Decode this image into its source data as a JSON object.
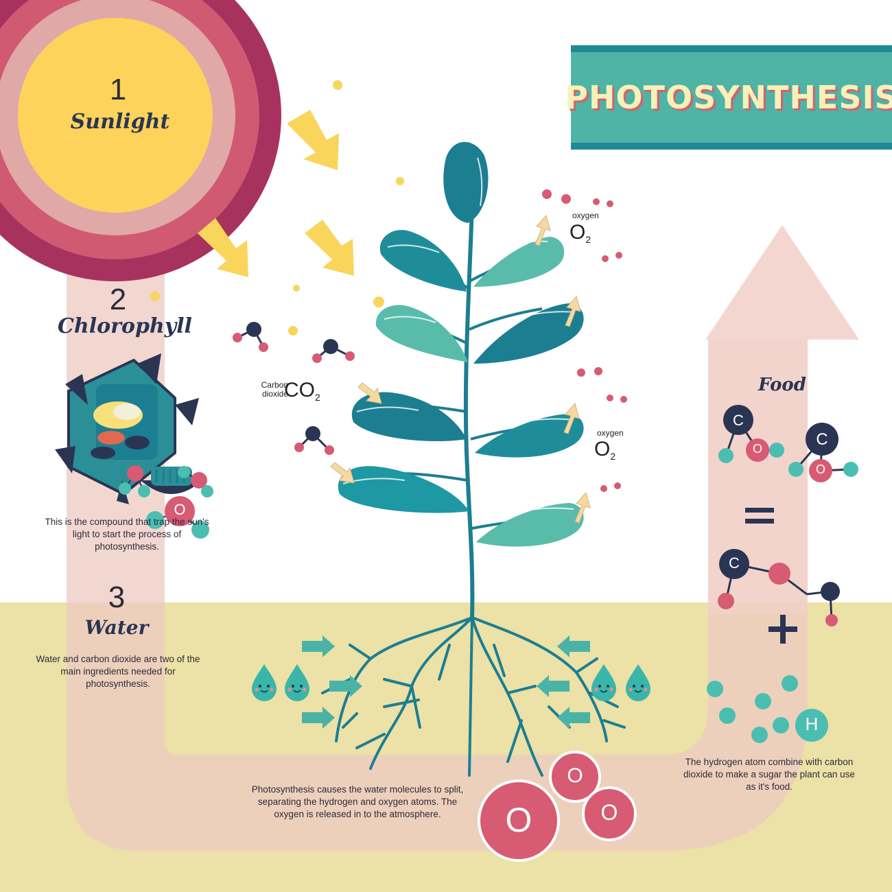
{
  "title": "PHOTOSYNTHESIS",
  "steps": [
    {
      "number": "1",
      "label": "Sunlight"
    },
    {
      "number": "2",
      "label": "Chlorophyll",
      "description": "This is the compound that trap the sun's light to start the process of photosynthesis."
    },
    {
      "number": "3",
      "label": "Water",
      "description": "Water and carbon dioxide are two of the main ingredients needed for photosynthesis."
    }
  ],
  "co2": {
    "name": "Carbon dioxide",
    "formula": "CO",
    "subscript": "2"
  },
  "o2_top": {
    "name": "oxygen",
    "formula": "O",
    "subscript": "2"
  },
  "o2_mid": {
    "name": "oxygen",
    "formula": "O",
    "subscript": "2"
  },
  "food": {
    "label": "Food",
    "equals": "=",
    "plus": "+"
  },
  "split_text": "Photosynthesis causes the water molecules to split, separating the hydrogen and oxygen atoms. The oxygen is released in to the atmosphere.",
  "hydrogen_text": "The hydrogen atom combine with carbon dioxide to make a sugar the plant can use as it's food.",
  "atoms": {
    "O": "O",
    "H": "H",
    "C": "C"
  },
  "colors": {
    "sun_core": "#fdd35c",
    "sun_ring_outer": "#a8325e",
    "sun_ring_mid": "#d05a72",
    "sun_ring_inner": "#e0a8a6",
    "soil": "#ece1a6",
    "plant": "#1c7e91",
    "leaf_light": "#59bcaa",
    "oxygen_atom": "#d65b73",
    "carbon_atom": "#2a3a66",
    "hydrogen_atom": "#4bbeb1",
    "title_bg": "#4fb3a6",
    "arrow_yellow": "#f9d55c"
  }
}
